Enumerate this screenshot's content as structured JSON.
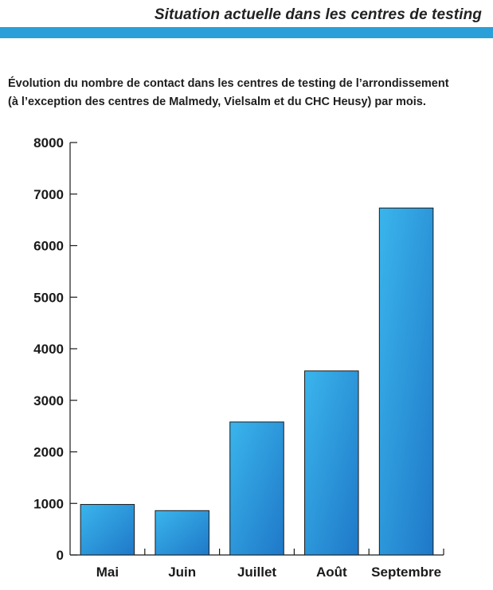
{
  "header": {
    "title": "Situation actuelle dans les centres de testing",
    "accent_color": "#2a9fd8"
  },
  "caption": {
    "line1": "Évolution du nombre de contact dans les centres de testing de l’arrondissement",
    "line2": "(à l’exception des centres de Malmedy, Vielsalm et du CHC Heusy) par mois."
  },
  "chart_data": {
    "type": "bar",
    "categories": [
      "Mai",
      "Juin",
      "Juillet",
      "Août",
      "Septembre"
    ],
    "values": [
      980,
      860,
      2580,
      3570,
      6730
    ],
    "ylim": [
      0,
      8000
    ],
    "yticks": [
      0,
      1000,
      2000,
      3000,
      4000,
      5000,
      6000,
      7000,
      8000
    ],
    "grid": false,
    "legend": "none",
    "bar_color_light": "#3ab5ec",
    "bar_color_dark": "#1f78c8",
    "bar_edge_color": "#1a1a1a"
  }
}
